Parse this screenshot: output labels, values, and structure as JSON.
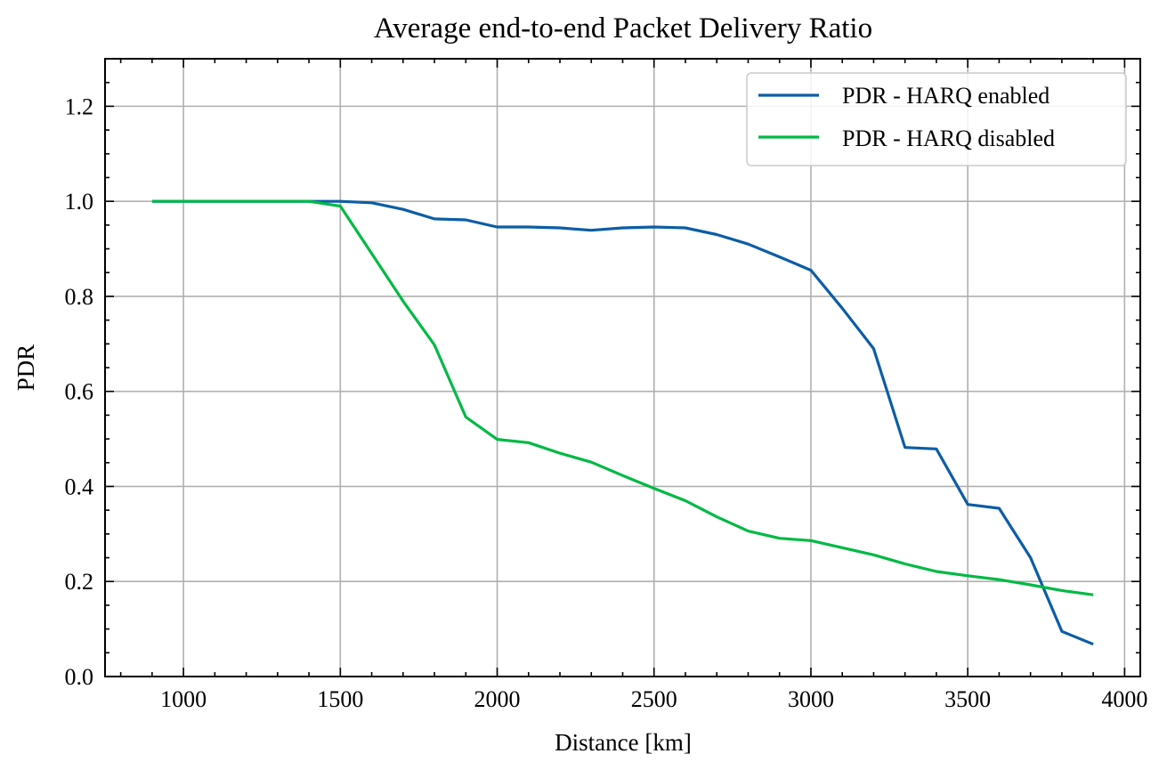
{
  "chart_data": {
    "type": "line",
    "title": "Average end-to-end Packet Delivery Ratio",
    "xlabel": "Distance [km]",
    "ylabel": "PDR",
    "xlim": [
      750,
      4050
    ],
    "ylim": [
      0,
      1.3
    ],
    "grid": true,
    "legend_position": "top-right",
    "xticks": [
      1000,
      1500,
      2000,
      2500,
      3000,
      3500,
      4000
    ],
    "xtick_labels": [
      "1000",
      "1500",
      "2000",
      "2500",
      "3000",
      "3500",
      "4000"
    ],
    "yticks": [
      0.0,
      0.2,
      0.4,
      0.6,
      0.8,
      1.0,
      1.2
    ],
    "ytick_labels": [
      "0.0",
      "0.2",
      "0.4",
      "0.6",
      "0.8",
      "1.0",
      "1.2"
    ],
    "x": [
      900,
      1000,
      1100,
      1200,
      1300,
      1400,
      1500,
      1600,
      1700,
      1800,
      1900,
      2000,
      2100,
      2200,
      2300,
      2400,
      2500,
      2600,
      2700,
      2800,
      2900,
      3000,
      3100,
      3200,
      3300,
      3400,
      3500,
      3600,
      3700,
      3800,
      3900
    ],
    "series": [
      {
        "name": "PDR - HARQ enabled",
        "color": "#0C5DA5",
        "values": [
          1.0,
          1.0,
          1.0,
          1.0,
          1.0,
          1.0,
          1.0,
          0.997,
          0.983,
          0.963,
          0.961,
          0.946,
          0.946,
          0.944,
          0.939,
          0.944,
          0.946,
          0.944,
          0.93,
          0.91,
          0.883,
          0.855,
          0.775,
          0.69,
          0.482,
          0.479,
          0.362,
          0.354,
          0.25,
          0.095,
          0.068
        ]
      },
      {
        "name": "PDR - HARQ disabled",
        "color": "#00B945",
        "values": [
          1.0,
          1.0,
          1.0,
          1.0,
          1.0,
          1.0,
          0.99,
          0.89,
          0.79,
          0.698,
          0.546,
          0.499,
          0.492,
          0.47,
          0.451,
          0.423,
          0.396,
          0.37,
          0.336,
          0.306,
          0.291,
          0.286,
          0.271,
          0.256,
          0.237,
          0.221,
          0.212,
          0.204,
          0.193,
          0.181,
          0.172
        ]
      }
    ]
  }
}
